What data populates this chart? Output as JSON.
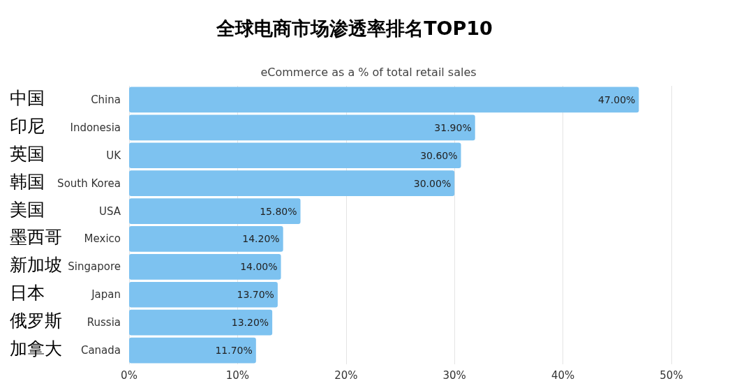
{
  "chart_data": {
    "type": "bar",
    "orientation": "horizontal",
    "title": "全球电商市场渗透率排名TOP10",
    "subtitle": "eCommerce as a % of total retail sales",
    "categories": [
      "China",
      "Indonesia",
      "UK",
      "South Korea",
      "USA",
      "Mexico",
      "Singapore",
      "Japan",
      "Russia",
      "Canada"
    ],
    "values": [
      47.0,
      31.9,
      30.6,
      30.0,
      15.8,
      14.2,
      14.0,
      13.7,
      13.2,
      11.7
    ],
    "value_labels": [
      "47.00%",
      "31.90%",
      "30.60%",
      "30.00%",
      "15.80%",
      "14.20%",
      "14.00%",
      "13.70%",
      "13.20%",
      "11.70%"
    ],
    "color": "#7dc2f0",
    "xlim": [
      0,
      50
    ],
    "xticks": [
      {
        "value": 0,
        "label": "0%"
      },
      {
        "value": 10,
        "label": "10%"
      },
      {
        "value": 20,
        "label": "20%"
      },
      {
        "value": 30,
        "label": "30%"
      },
      {
        "value": 40,
        "label": "40%"
      },
      {
        "value": 50,
        "label": "50%"
      }
    ],
    "grid": "x",
    "annotations": [
      "中国",
      "印尼",
      "英国",
      "韩国",
      "美国",
      "墨西哥",
      "新加坡",
      "日本",
      "俄罗斯",
      "加拿大"
    ]
  }
}
